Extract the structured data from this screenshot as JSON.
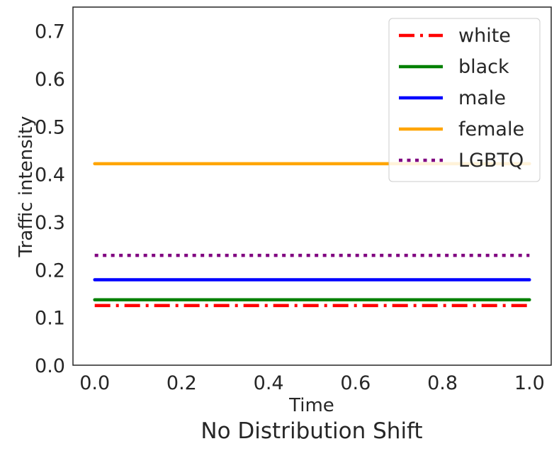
{
  "chart_data": {
    "type": "line",
    "title": "No Distribution Shift",
    "xlabel": "Time",
    "ylabel": "Traffic intensity",
    "xlim": [
      -0.05,
      1.05
    ],
    "ylim": [
      0.0,
      0.75
    ],
    "xticks": [
      0.0,
      0.2,
      0.4,
      0.6,
      0.8,
      1.0
    ],
    "xtick_labels": [
      "0.0",
      "0.2",
      "0.4",
      "0.6",
      "0.8",
      "1.0"
    ],
    "yticks": [
      0.0,
      0.1,
      0.2,
      0.3,
      0.4,
      0.5,
      0.6,
      0.7
    ],
    "ytick_labels": [
      "0.0",
      "0.1",
      "0.2",
      "0.3",
      "0.4",
      "0.5",
      "0.6",
      "0.7"
    ],
    "grid": false,
    "legend_position": "top-right",
    "series": [
      {
        "name": "white",
        "x": [
          0.0,
          1.0
        ],
        "y": [
          0.125,
          0.125
        ],
        "color": "#ff0000",
        "style": "dashdot"
      },
      {
        "name": "black",
        "x": [
          0.0,
          1.0
        ],
        "y": [
          0.137,
          0.137
        ],
        "color": "#008000",
        "style": "solid"
      },
      {
        "name": "male",
        "x": [
          0.0,
          1.0
        ],
        "y": [
          0.179,
          0.179
        ],
        "color": "#0000ff",
        "style": "solid"
      },
      {
        "name": "female",
        "x": [
          0.0,
          1.0
        ],
        "y": [
          0.422,
          0.422
        ],
        "color": "#ffa500",
        "style": "solid"
      },
      {
        "name": "LGBTQ",
        "x": [
          0.0,
          1.0
        ],
        "y": [
          0.23,
          0.23
        ],
        "color": "#800080",
        "style": "dotted"
      }
    ]
  }
}
